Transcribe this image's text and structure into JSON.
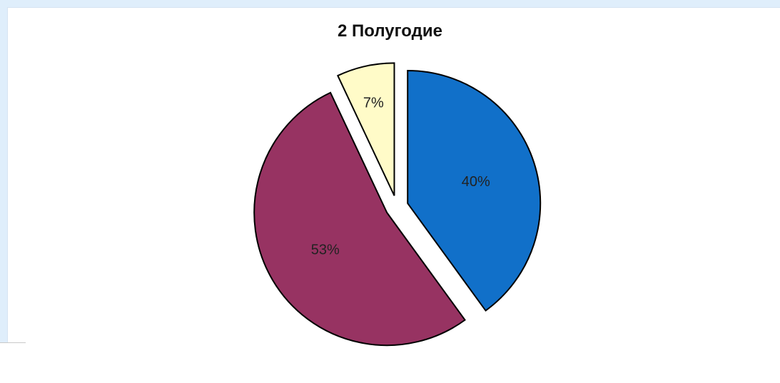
{
  "chart_data": {
    "type": "pie",
    "title": "2 Полугодие",
    "slices": [
      {
        "label": "40%",
        "value": 40,
        "color": "#1170c9",
        "exploded": true
      },
      {
        "label": "53%",
        "value": 53,
        "color": "#973362",
        "exploded": true
      },
      {
        "label": "7%",
        "value": 7,
        "color": "#fffbc8",
        "exploded": true
      }
    ],
    "start_angle_deg": 0,
    "direction": "clockwise",
    "slice_outline": "#000000",
    "legend": "none"
  }
}
